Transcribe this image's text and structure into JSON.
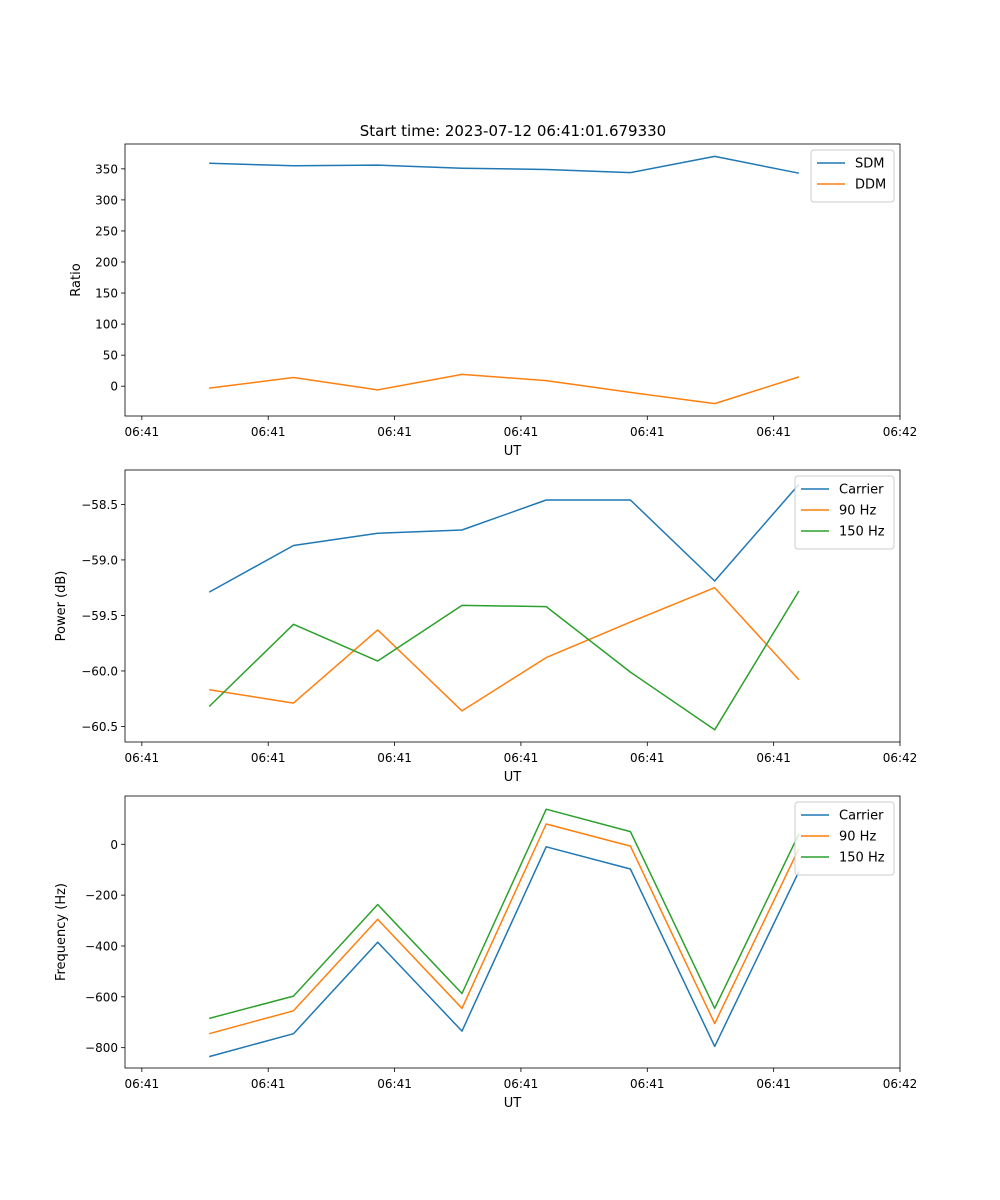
{
  "figure_title": "Start time: 2023-07-12 06:41:01.679330",
  "chart_data": [
    {
      "type": "line",
      "title": "Start time: 2023-07-12 06:41:01.679330",
      "xlabel": "UT",
      "ylabel": "Ratio",
      "x": [
        1,
        2,
        3,
        4,
        5,
        6,
        7,
        8
      ],
      "xlim": [
        0,
        9.2
      ],
      "x_ticks": [
        0.2,
        1.7,
        3.2,
        4.7,
        6.2,
        7.7,
        9.2
      ],
      "x_tick_labels": [
        "06:41",
        "06:41",
        "06:41",
        "06:41",
        "06:41",
        "06:41",
        "06:42"
      ],
      "ylim": [
        -48,
        390
      ],
      "y_ticks": [
        0,
        50,
        100,
        150,
        200,
        250,
        300,
        350
      ],
      "y_tick_labels": [
        "0",
        "50",
        "100",
        "150",
        "200",
        "250",
        "300",
        "350"
      ],
      "legend": "top-right",
      "series": [
        {
          "name": "SDM",
          "color": "#1f77b4",
          "values": [
            359,
            355,
            356,
            351,
            349,
            344,
            370,
            343
          ]
        },
        {
          "name": "DDM",
          "color": "#ff7f0e",
          "values": [
            -3,
            14,
            -6,
            19,
            9,
            -10,
            -28,
            15
          ]
        }
      ]
    },
    {
      "type": "line",
      "title": "",
      "xlabel": "UT",
      "ylabel": "Power (dB)",
      "x": [
        1,
        2,
        3,
        4,
        5,
        6,
        7,
        8
      ],
      "xlim": [
        0,
        9.2
      ],
      "x_ticks": [
        0.2,
        1.7,
        3.2,
        4.7,
        6.2,
        7.7,
        9.2
      ],
      "x_tick_labels": [
        "06:41",
        "06:41",
        "06:41",
        "06:41",
        "06:41",
        "06:41",
        "06:42"
      ],
      "ylim": [
        -60.64,
        -58.19
      ],
      "y_ticks": [
        -60.5,
        -60.0,
        -59.5,
        -59.0,
        -58.5
      ],
      "y_tick_labels": [
        "−60.5",
        "−60.0",
        "−59.5",
        "−59.0",
        "−58.5"
      ],
      "legend": "top-right",
      "series": [
        {
          "name": "Carrier",
          "color": "#1f77b4",
          "values": [
            -59.29,
            -58.87,
            -58.76,
            -58.73,
            -58.46,
            -58.46,
            -59.19,
            -58.32
          ]
        },
        {
          "name": "90 Hz",
          "color": "#ff7f0e",
          "values": [
            -60.17,
            -60.29,
            -59.63,
            -60.36,
            -59.88,
            -59.56,
            -59.25,
            -60.08
          ]
        },
        {
          "name": "150 Hz",
          "color": "#2ca02c",
          "values": [
            -60.32,
            -59.58,
            -59.91,
            -59.41,
            -59.42,
            -60.01,
            -60.53,
            -59.28
          ]
        }
      ]
    },
    {
      "type": "line",
      "title": "",
      "xlabel": "UT",
      "ylabel": "Frequency (Hz)",
      "x": [
        1,
        2,
        3,
        4,
        5,
        6,
        7,
        8
      ],
      "xlim": [
        0,
        9.2
      ],
      "x_ticks": [
        0.2,
        1.7,
        3.2,
        4.7,
        6.2,
        7.7,
        9.2
      ],
      "x_tick_labels": [
        "06:41",
        "06:41",
        "06:41",
        "06:41",
        "06:41",
        "06:41",
        "06:42"
      ],
      "ylim": [
        -880,
        190
      ],
      "y_ticks": [
        -800,
        -600,
        -400,
        -200,
        0
      ],
      "y_tick_labels": [
        "−800",
        "−600",
        "−400",
        "−200",
        "0"
      ],
      "legend": "top-right",
      "series": [
        {
          "name": "Carrier",
          "color": "#1f77b4",
          "values": [
            -835,
            -745,
            -385,
            -735,
            -10,
            -97,
            -795,
            -107
          ]
        },
        {
          "name": "90 Hz",
          "color": "#ff7f0e",
          "values": [
            -745,
            -655,
            -295,
            -645,
            80,
            -7,
            -705,
            -17
          ]
        },
        {
          "name": "150 Hz",
          "color": "#2ca02c",
          "values": [
            -685,
            -597,
            -237,
            -587,
            138,
            50,
            -645,
            41
          ]
        }
      ]
    }
  ]
}
